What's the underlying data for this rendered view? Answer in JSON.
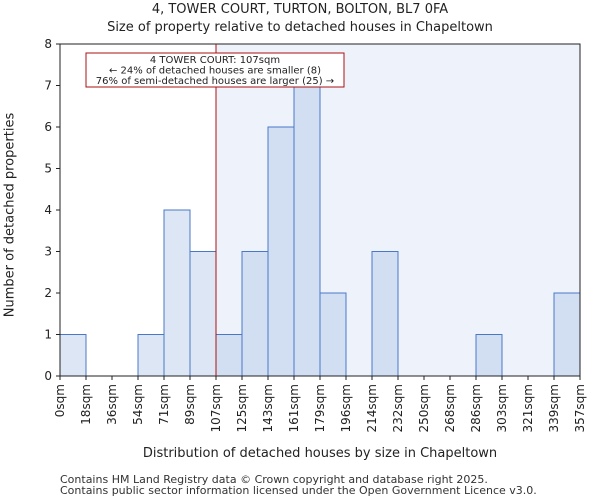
{
  "header": {
    "title_line1": "4, TOWER COURT, TURTON, BOLTON, BL7 0FA",
    "title_line2": "Size of property relative to detached houses in Chapeltown"
  },
  "footer": {
    "line1": "Contains HM Land Registry data © Crown copyright and database right 2025.",
    "line2": "Contains public sector information licensed under the Open Government Licence v3.0."
  },
  "colors": {
    "bar_fill_left": "#dce6f4",
    "bar_fill_right": "#d2def2",
    "bar_edge": "#4a78c8",
    "highlight_bg": "#eef2fb",
    "marker_line": "#aa1111",
    "annotation_border": "#aa1111"
  },
  "chart_data": {
    "type": "bar",
    "title": "4, TOWER COURT, TURTON, BOLTON, BL7 0FA\nSize of property relative to detached houses in Chapeltown",
    "xlabel": "Distribution of detached houses by size in Chapeltown",
    "ylabel": "Number of detached properties",
    "ylim": [
      0,
      8
    ],
    "yticks": [
      0,
      1,
      2,
      3,
      4,
      5,
      6,
      7,
      8
    ],
    "bin_edges": [
      "0sqm",
      "18sqm",
      "36sqm",
      "54sqm",
      "71sqm",
      "89sqm",
      "107sqm",
      "125sqm",
      "143sqm",
      "161sqm",
      "179sqm",
      "196sqm",
      "214sqm",
      "232sqm",
      "250sqm",
      "268sqm",
      "286sqm",
      "303sqm",
      "321sqm",
      "339sqm",
      "357sqm"
    ],
    "values": [
      1,
      0,
      0,
      1,
      4,
      3,
      1,
      3,
      6,
      7,
      2,
      0,
      3,
      0,
      0,
      0,
      1,
      0,
      0,
      2
    ],
    "marker": {
      "label": "4 TOWER COURT",
      "value_sqm": 107,
      "bin_index": 6
    },
    "annotation": {
      "line1": "4 TOWER COURT: 107sqm",
      "line2": "← 24% of detached houses are smaller (8)",
      "line3": "76% of semi-detached houses are larger (25) →"
    },
    "grid": false,
    "legend": "none"
  }
}
